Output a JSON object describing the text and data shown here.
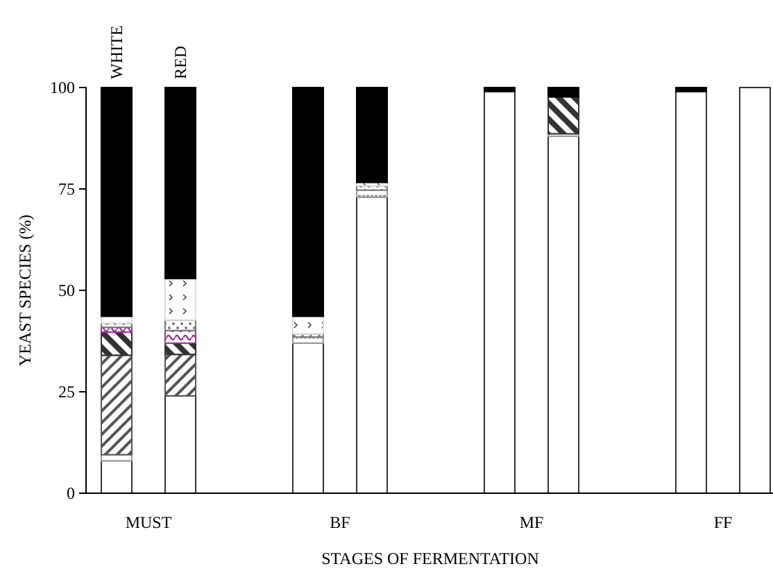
{
  "chart_data": {
    "type": "bar",
    "stacked": true,
    "xlabel": "STAGES OF FERMENTATION",
    "ylabel": "YEAST SPECIES (%)",
    "categories": [
      null,
      null,
      null,
      null,
      null,
      null,
      null,
      null
    ],
    "annotations": [
      "WHITE",
      "RED",
      "MUST",
      "BF",
      "MF",
      "FF"
    ],
    "ylim": [
      0,
      100
    ],
    "yticks": [
      0,
      25,
      50,
      75,
      100
    ],
    "grid": false,
    "series": [
      {
        "color": "#ffffff",
        "values": [
          8,
          24,
          37,
          73,
          99,
          88,
          99,
          100
        ]
      },
      {
        "color": "#999999",
        "values": [
          1.5,
          0,
          1.5,
          1.7,
          0,
          0.6,
          0,
          0
        ]
      },
      {
        "color": "#555555",
        "values": [
          24.5,
          10.2,
          0,
          0,
          0,
          0,
          0,
          0
        ]
      },
      {
        "color": "#333333",
        "values": [
          5.7,
          2.8,
          0,
          0,
          0,
          9.1,
          0,
          0
        ]
      },
      {
        "color": "#993399",
        "values": [
          1.2,
          3.1,
          0,
          0,
          0,
          0,
          0,
          0
        ]
      },
      {
        "color": "#777777",
        "values": [
          1,
          2.6,
          0.8,
          1.1,
          0,
          0,
          0,
          0
        ]
      },
      {
        "color": "#dddddd",
        "values": [
          1.7,
          10.2,
          4.3,
          0.8,
          0,
          0,
          0,
          0
        ]
      },
      {
        "color": "#000000",
        "values": [
          56.4,
          47.1,
          56.4,
          23.4,
          1,
          2.3,
          1,
          0
        ]
      }
    ]
  }
}
